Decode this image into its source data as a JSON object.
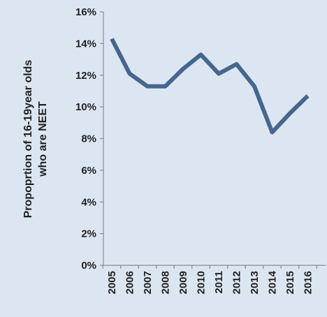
{
  "chart_data": {
    "type": "line",
    "title": "",
    "ylabel_lines": [
      "Propoprtion of 16-19year olds",
      "who are NEET"
    ],
    "xlabel": "",
    "ylim": [
      0,
      16
    ],
    "y_ticks": [
      0,
      2,
      4,
      6,
      8,
      10,
      12,
      14,
      16
    ],
    "y_tick_labels": [
      "0%",
      "2%",
      "4%",
      "6%",
      "8%",
      "10%",
      "12%",
      "14%",
      "16%"
    ],
    "categories": [
      "2005",
      "2006",
      "2007",
      "2008",
      "2009",
      "2010",
      "2011",
      "2012",
      "2013",
      "2014",
      "2015",
      "2016"
    ],
    "series": [
      {
        "values": [
          14.3,
          12.1,
          11.3,
          11.3,
          12.4,
          13.3,
          12.1,
          12.7,
          11.3,
          8.4,
          9.6,
          10.7
        ]
      }
    ],
    "grid": false,
    "colors": {
      "line": "#44668f",
      "axis": "#8c8c8c",
      "background": "#dce6f1"
    }
  }
}
